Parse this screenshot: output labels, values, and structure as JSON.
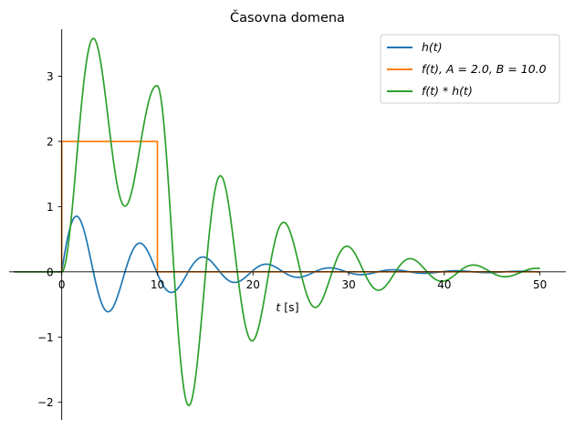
{
  "chart_data": {
    "type": "line",
    "title": "Časovna domena",
    "xlabel_var": "t",
    "xlabel_unit": " [s]",
    "ylabel": "",
    "xlim": [
      -5.5,
      52.7
    ],
    "ylim": [
      -2.27,
      3.72
    ],
    "xticks": [
      0,
      10,
      20,
      30,
      40,
      50
    ],
    "xtick_labels": [
      "0",
      "10",
      "20",
      "30",
      "40",
      "50"
    ],
    "yticks": [
      -2,
      -1,
      0,
      1,
      2,
      3
    ],
    "ytick_labels": [
      "−2",
      "−1",
      "0",
      "1",
      "2",
      "3"
    ],
    "grid": false,
    "spines": "centered at zero",
    "legend_position": "upper-right",
    "series": [
      {
        "name": "h(t)",
        "color": "#1f77b4",
        "model": "exp(-a t)·sin(w t), t ≥ 0",
        "params": {
          "amplitude": 1.0,
          "decay": 0.1,
          "omega": 0.95
        }
      },
      {
        "name": "f(t), A = 2.0, B = 10.0",
        "color": "#ff7f0e",
        "model": "A for 0 ≤ t ≤ B, else 0",
        "params": {
          "A": 2.0,
          "B": 10.0
        }
      },
      {
        "name": "f(t) * h(t)",
        "color": "#2ca02c",
        "model": "convolution of f and h"
      }
    ],
    "x_range": [
      -5,
      50
    ],
    "samples": 2200
  }
}
